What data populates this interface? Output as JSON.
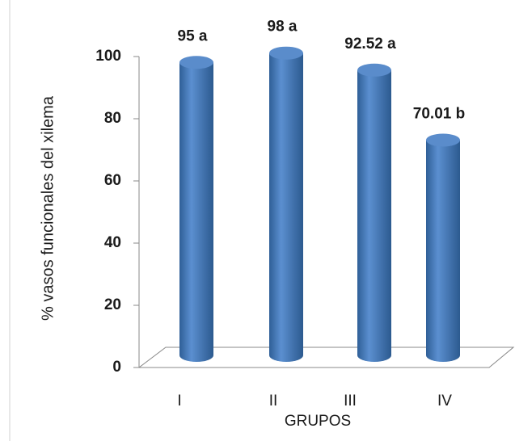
{
  "chart_data": {
    "type": "bar",
    "categories": [
      "I",
      "II",
      "III",
      "IV"
    ],
    "values": [
      95,
      98,
      92.52,
      70.01
    ],
    "value_labels": [
      "95 a",
      "98 a",
      "92.52 a",
      "70.01 b"
    ],
    "color": "#4f81bd",
    "ylim": [
      0,
      100
    ],
    "yticks": [
      0,
      20,
      40,
      60,
      80,
      100
    ],
    "x_label": "GRUPOS",
    "y_label": "% vasos funcionales del xilema"
  }
}
